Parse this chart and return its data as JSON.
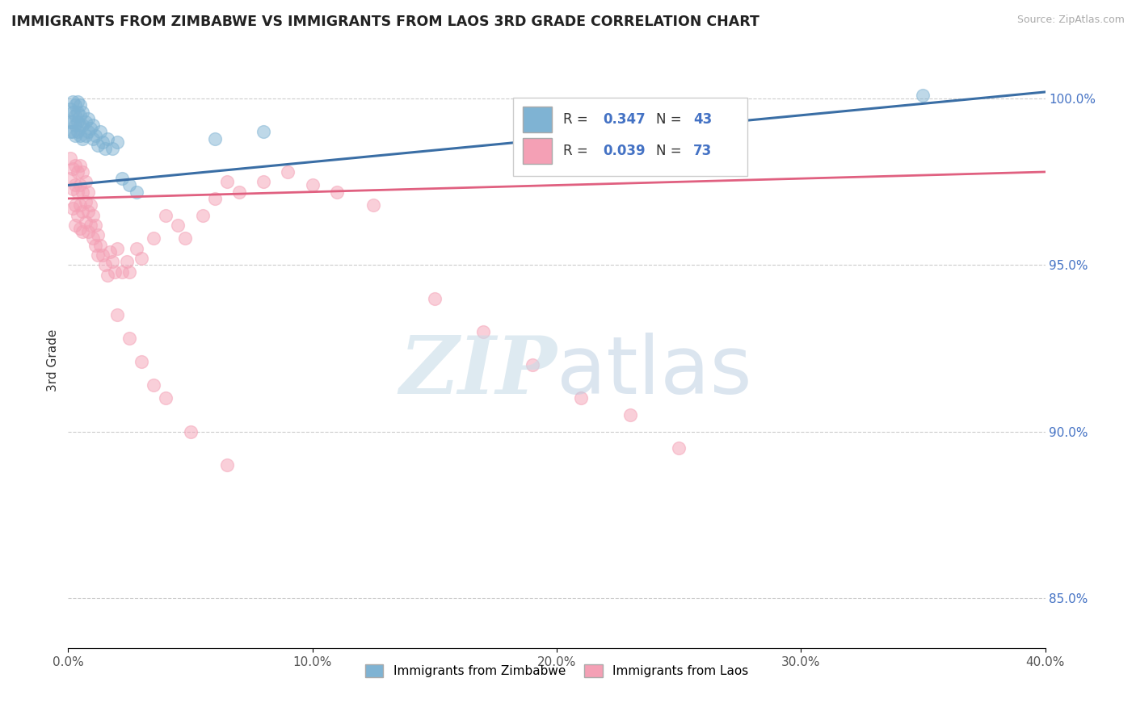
{
  "title": "IMMIGRANTS FROM ZIMBABWE VS IMMIGRANTS FROM LAOS 3RD GRADE CORRELATION CHART",
  "source": "Source: ZipAtlas.com",
  "ylabel": "3rd Grade",
  "xlim": [
    0.0,
    0.4
  ],
  "ylim": [
    0.835,
    1.008
  ],
  "xtick_labels": [
    "0.0%",
    "10.0%",
    "20.0%",
    "30.0%",
    "40.0%"
  ],
  "xtick_values": [
    0.0,
    0.1,
    0.2,
    0.3,
    0.4
  ],
  "ytick_labels": [
    "85.0%",
    "90.0%",
    "95.0%",
    "100.0%"
  ],
  "ytick_values": [
    0.85,
    0.9,
    0.95,
    1.0
  ],
  "blue_color": "#7fb3d3",
  "pink_color": "#f4a0b5",
  "blue_line_color": "#3a6ea5",
  "pink_line_color": "#e06080",
  "blue_line_y0": 0.974,
  "blue_line_y1": 1.002,
  "pink_line_y0": 0.97,
  "pink_line_y1": 0.978,
  "blue_x": [
    0.001,
    0.001,
    0.001,
    0.002,
    0.002,
    0.002,
    0.002,
    0.003,
    0.003,
    0.003,
    0.003,
    0.004,
    0.004,
    0.004,
    0.004,
    0.005,
    0.005,
    0.005,
    0.005,
    0.006,
    0.006,
    0.006,
    0.007,
    0.007,
    0.008,
    0.008,
    0.009,
    0.01,
    0.01,
    0.011,
    0.012,
    0.013,
    0.014,
    0.015,
    0.016,
    0.018,
    0.02,
    0.022,
    0.025,
    0.028,
    0.06,
    0.08,
    0.35
  ],
  "blue_y": [
    0.99,
    0.993,
    0.997,
    0.99,
    0.993,
    0.996,
    0.999,
    0.989,
    0.992,
    0.995,
    0.998,
    0.99,
    0.993,
    0.996,
    0.999,
    0.989,
    0.992,
    0.995,
    0.998,
    0.988,
    0.992,
    0.996,
    0.989,
    0.993,
    0.99,
    0.994,
    0.991,
    0.988,
    0.992,
    0.989,
    0.986,
    0.99,
    0.987,
    0.985,
    0.988,
    0.985,
    0.987,
    0.976,
    0.974,
    0.972,
    0.988,
    0.99,
    1.001
  ],
  "pink_x": [
    0.001,
    0.001,
    0.002,
    0.002,
    0.002,
    0.003,
    0.003,
    0.003,
    0.003,
    0.004,
    0.004,
    0.004,
    0.005,
    0.005,
    0.005,
    0.005,
    0.006,
    0.006,
    0.006,
    0.006,
    0.007,
    0.007,
    0.007,
    0.008,
    0.008,
    0.008,
    0.009,
    0.009,
    0.01,
    0.01,
    0.011,
    0.011,
    0.012,
    0.012,
    0.013,
    0.014,
    0.015,
    0.016,
    0.017,
    0.018,
    0.019,
    0.02,
    0.022,
    0.024,
    0.025,
    0.028,
    0.03,
    0.035,
    0.04,
    0.045,
    0.048,
    0.055,
    0.06,
    0.065,
    0.07,
    0.08,
    0.09,
    0.1,
    0.11,
    0.125,
    0.15,
    0.17,
    0.19,
    0.21,
    0.23,
    0.25,
    0.02,
    0.025,
    0.03,
    0.035,
    0.04,
    0.05,
    0.065
  ],
  "pink_y": [
    0.982,
    0.976,
    0.979,
    0.973,
    0.967,
    0.98,
    0.974,
    0.968,
    0.962,
    0.978,
    0.972,
    0.965,
    0.98,
    0.974,
    0.968,
    0.961,
    0.978,
    0.972,
    0.966,
    0.96,
    0.975,
    0.969,
    0.963,
    0.972,
    0.966,
    0.96,
    0.968,
    0.962,
    0.965,
    0.958,
    0.962,
    0.956,
    0.959,
    0.953,
    0.956,
    0.953,
    0.95,
    0.947,
    0.954,
    0.951,
    0.948,
    0.955,
    0.948,
    0.951,
    0.948,
    0.955,
    0.952,
    0.958,
    0.965,
    0.962,
    0.958,
    0.965,
    0.97,
    0.975,
    0.972,
    0.975,
    0.978,
    0.974,
    0.972,
    0.968,
    0.94,
    0.93,
    0.92,
    0.91,
    0.905,
    0.895,
    0.935,
    0.928,
    0.921,
    0.914,
    0.91,
    0.9,
    0.89
  ]
}
